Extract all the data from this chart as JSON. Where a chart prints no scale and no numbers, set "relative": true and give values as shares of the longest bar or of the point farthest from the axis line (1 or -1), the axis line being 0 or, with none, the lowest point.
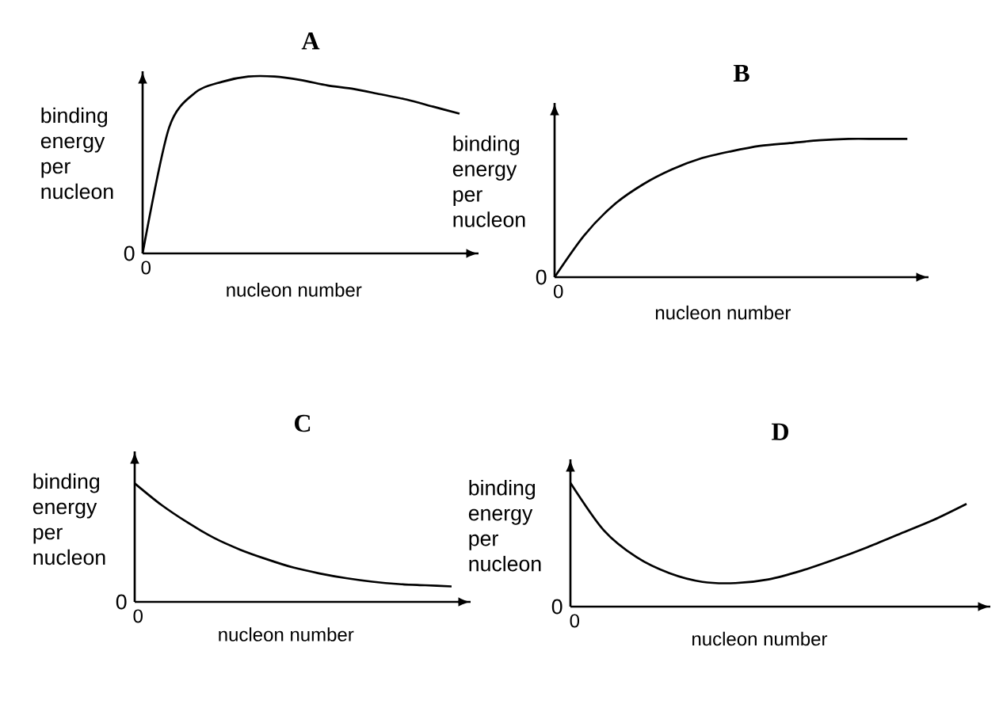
{
  "chart_data": [
    {
      "type": "line",
      "title": "A",
      "ylabel": "binding energy per nucleon",
      "xlabel": "nucleon number",
      "relative": true,
      "annotations": [
        "0",
        "0"
      ],
      "categories": [
        null,
        null,
        null,
        null,
        null,
        null,
        null,
        null,
        null,
        null,
        null,
        null,
        null
      ],
      "series": [
        {
          "color": "#000000",
          "values": [
            0,
            0.71,
            0.91,
            0.97,
            1.0,
            1.0,
            0.98,
            0.95,
            0.93,
            0.9,
            0.87,
            0.83,
            0.79
          ]
        }
      ]
    },
    {
      "type": "line",
      "title": "B",
      "ylabel": "binding energy per nucleon",
      "xlabel": "nucleon number",
      "relative": true,
      "annotations": [
        "0",
        "0"
      ],
      "categories": [
        null,
        null,
        null,
        null,
        null,
        null,
        null,
        null,
        null,
        null,
        null,
        null,
        null
      ],
      "series": [
        {
          "color": "#000000",
          "values": [
            0,
            0.3,
            0.52,
            0.67,
            0.78,
            0.86,
            0.91,
            0.95,
            0.97,
            0.99,
            1.0,
            1.0,
            1.0
          ]
        }
      ]
    },
    {
      "type": "line",
      "title": "C",
      "ylabel": "binding energy per nucleon",
      "xlabel": "nucleon number",
      "relative": true,
      "annotations": [
        "0",
        "0"
      ],
      "categories": [
        null,
        null,
        null,
        null,
        null,
        null,
        null,
        null,
        null,
        null,
        null,
        null,
        null
      ],
      "series": [
        {
          "color": "#000000",
          "values": [
            1.0,
            0.82,
            0.67,
            0.54,
            0.44,
            0.36,
            0.29,
            0.24,
            0.2,
            0.17,
            0.15,
            0.14,
            0.13
          ]
        }
      ]
    },
    {
      "type": "line",
      "title": "D",
      "ylabel": "binding energy per nucleon",
      "xlabel": "nucleon number",
      "relative": true,
      "annotations": [
        "0",
        "0"
      ],
      "categories": [
        null,
        null,
        null,
        null,
        null,
        null,
        null,
        null,
        null,
        null,
        null,
        null,
        null
      ],
      "series": [
        {
          "color": "#000000",
          "values": [
            1.0,
            0.62,
            0.4,
            0.27,
            0.2,
            0.19,
            0.22,
            0.29,
            0.38,
            0.48,
            0.59,
            0.7,
            0.83
          ]
        }
      ]
    }
  ]
}
